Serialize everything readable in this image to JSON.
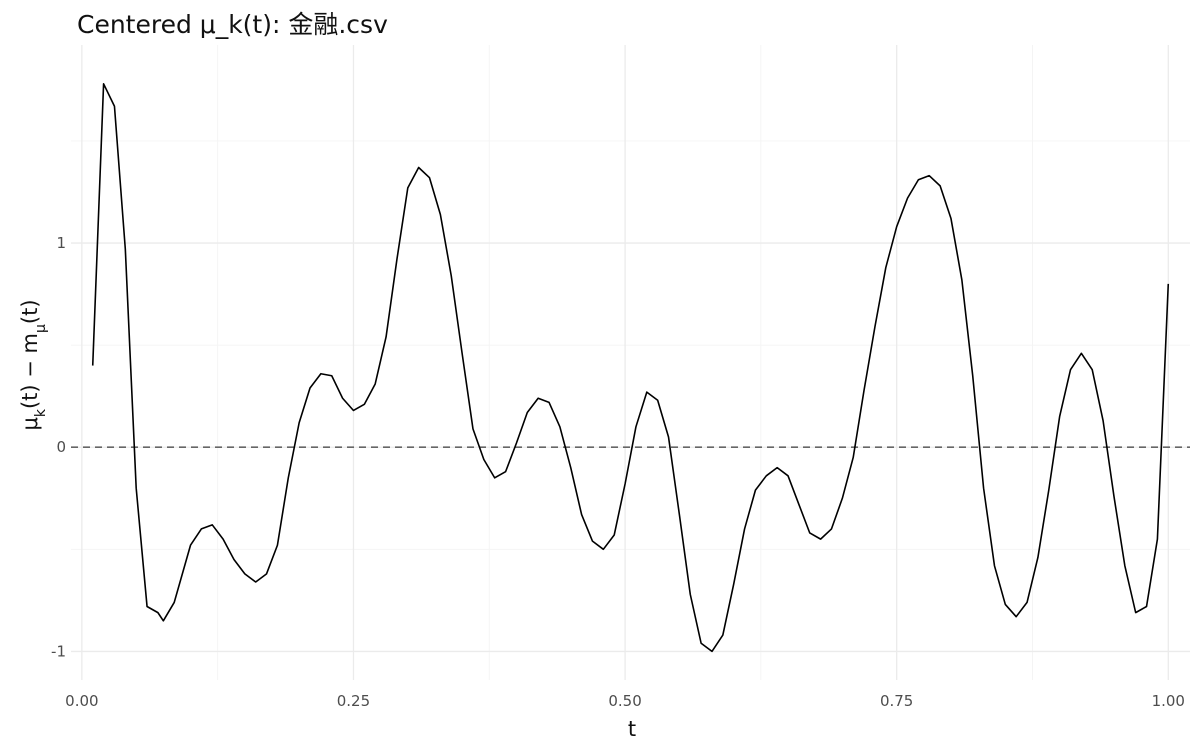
{
  "chart_data": {
    "type": "line",
    "title": "Centered μ_k(t): 金融.csv",
    "xlabel": "t",
    "ylabel_parts": {
      "mu": "μ",
      "k": "k",
      "mid": "(t) − m",
      "sub": "μ",
      "end": "(t)"
    },
    "xlim": [
      -0.01,
      1.02
    ],
    "ylim": [
      -1.14,
      1.97
    ],
    "x_ticks": [
      0.0,
      0.25,
      0.5,
      0.75,
      1.0
    ],
    "x_tick_labels": [
      "0.00",
      "0.25",
      "0.50",
      "0.75",
      "1.00"
    ],
    "y_ticks": [
      -1,
      0,
      1
    ],
    "y_tick_labels": [
      "-1",
      "0",
      "1"
    ],
    "x_minor_ticks": [
      0.125,
      0.375,
      0.625,
      0.875
    ],
    "y_minor_ticks": [
      -0.5,
      0.5,
      1.5
    ],
    "grid": true,
    "reference_line": {
      "y": 0,
      "style": "dashed"
    },
    "series": [
      {
        "color": "#000000",
        "x": [
          0.01,
          0.02,
          0.03,
          0.04,
          0.05,
          0.06,
          0.07,
          0.075,
          0.085,
          0.1,
          0.11,
          0.12,
          0.13,
          0.14,
          0.15,
          0.16,
          0.17,
          0.18,
          0.19,
          0.2,
          0.21,
          0.22,
          0.23,
          0.24,
          0.25,
          0.26,
          0.27,
          0.28,
          0.29,
          0.3,
          0.31,
          0.32,
          0.33,
          0.34,
          0.35,
          0.36,
          0.37,
          0.38,
          0.39,
          0.4,
          0.41,
          0.42,
          0.43,
          0.44,
          0.45,
          0.46,
          0.47,
          0.48,
          0.49,
          0.5,
          0.51,
          0.52,
          0.53,
          0.54,
          0.55,
          0.56,
          0.57,
          0.58,
          0.59,
          0.6,
          0.61,
          0.62,
          0.63,
          0.64,
          0.65,
          0.66,
          0.67,
          0.68,
          0.69,
          0.7,
          0.71,
          0.72,
          0.73,
          0.74,
          0.75,
          0.76,
          0.77,
          0.78,
          0.79,
          0.8,
          0.81,
          0.82,
          0.83,
          0.84,
          0.85,
          0.86,
          0.87,
          0.88,
          0.89,
          0.9,
          0.91,
          0.92,
          0.93,
          0.94,
          0.95,
          0.96,
          0.97,
          0.98,
          0.99,
          1.0
        ],
        "y": [
          0.4,
          1.78,
          1.67,
          0.97,
          -0.2,
          -0.78,
          -0.81,
          -0.85,
          -0.76,
          -0.48,
          -0.4,
          -0.38,
          -0.45,
          -0.55,
          -0.62,
          -0.66,
          -0.62,
          -0.48,
          -0.15,
          0.12,
          0.29,
          0.36,
          0.35,
          0.24,
          0.18,
          0.21,
          0.31,
          0.54,
          0.92,
          1.27,
          1.37,
          1.32,
          1.14,
          0.84,
          0.46,
          0.09,
          -0.06,
          -0.15,
          -0.12,
          0.02,
          0.17,
          0.24,
          0.22,
          0.1,
          -0.1,
          -0.33,
          -0.46,
          -0.5,
          -0.43,
          -0.18,
          0.1,
          0.27,
          0.23,
          0.05,
          -0.33,
          -0.72,
          -0.96,
          -1.0,
          -0.92,
          -0.67,
          -0.4,
          -0.21,
          -0.14,
          -0.1,
          -0.14,
          -0.28,
          -0.42,
          -0.45,
          -0.4,
          -0.25,
          -0.05,
          0.28,
          0.59,
          0.88,
          1.08,
          1.22,
          1.31,
          1.33,
          1.28,
          1.12,
          0.82,
          0.35,
          -0.2,
          -0.58,
          -0.77,
          -0.83,
          -0.76,
          -0.54,
          -0.21,
          0.15,
          0.38,
          0.46,
          0.38,
          0.13,
          -0.24,
          -0.58,
          -0.81,
          -0.78,
          -0.45,
          0.8
        ]
      }
    ]
  }
}
